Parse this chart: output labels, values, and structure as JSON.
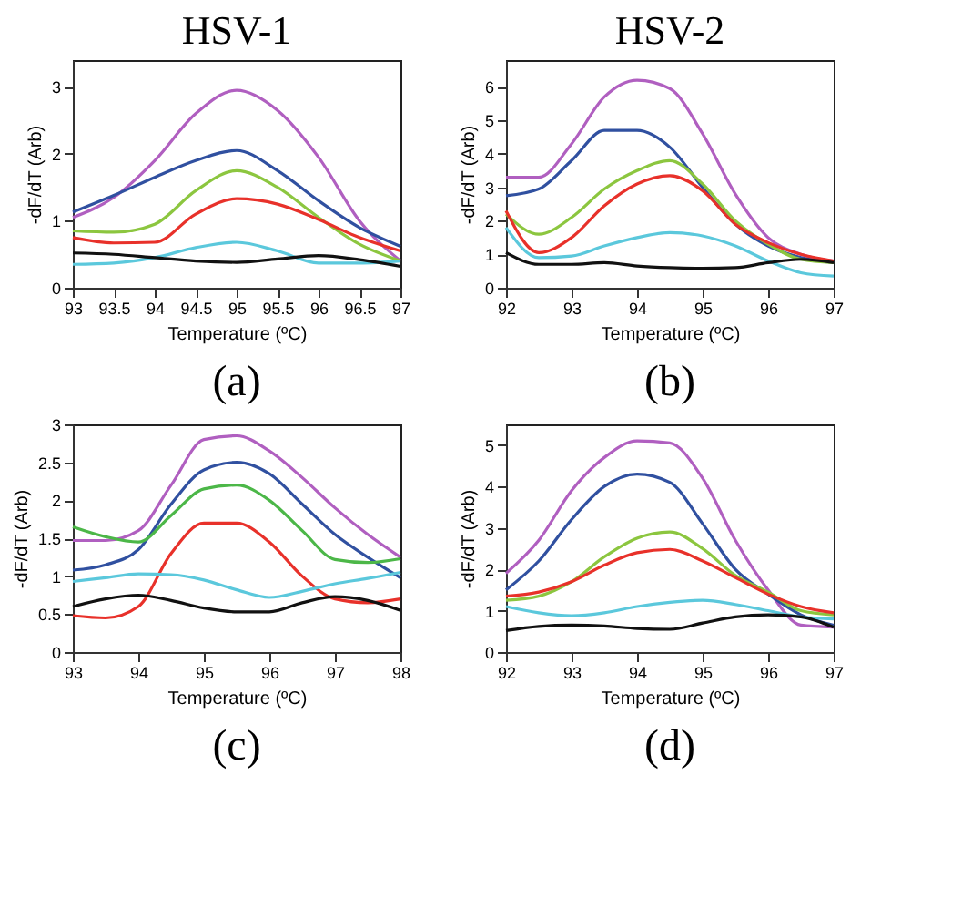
{
  "chart_data": [
    {
      "type": "line",
      "title": "HSV-1",
      "xlabel": "Temperature (ºC)",
      "ylabel": "-dF/dT (Arb)",
      "annotations": [
        "(a)"
      ],
      "grid": false,
      "xlim": [
        93,
        97
      ],
      "xticks": [
        93,
        93.5,
        94,
        94.5,
        95,
        95.5,
        96,
        96.5,
        97
      ],
      "ylim": [
        0,
        3.4
      ],
      "yticks": [
        0,
        1,
        2,
        3
      ],
      "x": [
        93,
        93.5,
        94,
        94.5,
        95,
        95.5,
        96,
        96.5,
        97
      ],
      "series": [
        {
          "color": "#b05fc0",
          "values": [
            1.05,
            1.35,
            1.9,
            2.6,
            2.95,
            2.65,
            1.95,
            1.0,
            0.4
          ]
        },
        {
          "color": "#3050a0",
          "values": [
            1.13,
            1.38,
            1.65,
            1.9,
            2.05,
            1.75,
            1.3,
            0.9,
            0.62
          ]
        },
        {
          "color": "#8cc63f",
          "values": [
            0.85,
            0.83,
            0.95,
            1.45,
            1.75,
            1.5,
            1.05,
            0.65,
            0.4
          ]
        },
        {
          "color": "#e8312a",
          "values": [
            0.75,
            0.67,
            0.68,
            1.1,
            1.33,
            1.25,
            1.02,
            0.75,
            0.55
          ]
        },
        {
          "color": "#5bc8dc",
          "values": [
            0.35,
            0.37,
            0.45,
            0.6,
            0.68,
            0.55,
            0.37,
            0.37,
            0.4
          ]
        },
        {
          "color": "#111111",
          "values": [
            0.52,
            0.5,
            0.45,
            0.4,
            0.38,
            0.43,
            0.48,
            0.42,
            0.32
          ]
        }
      ]
    },
    {
      "type": "line",
      "title": "HSV-2",
      "xlabel": "Temperature (ºC)",
      "ylabel": "-dF/dT (Arb)",
      "annotations": [
        "(b)"
      ],
      "grid": false,
      "xlim": [
        92,
        97
      ],
      "xticks": [
        92,
        93,
        94,
        95,
        96,
        97
      ],
      "ylim": [
        0,
        6.8
      ],
      "yticks": [
        0,
        1,
        2,
        3,
        4,
        5,
        6
      ],
      "x": [
        92,
        92.5,
        93,
        93.5,
        94,
        94.5,
        95,
        95.5,
        96,
        96.5,
        97
      ],
      "series": [
        {
          "color": "#b05fc0",
          "values": [
            3.3,
            3.3,
            4.3,
            5.7,
            6.2,
            5.95,
            4.6,
            2.8,
            1.5,
            1.0,
            0.8
          ]
        },
        {
          "color": "#3050a0",
          "values": [
            2.75,
            2.95,
            3.8,
            4.7,
            4.7,
            4.2,
            3.0,
            1.9,
            1.25,
            0.9,
            0.75
          ]
        },
        {
          "color": "#8cc63f",
          "values": [
            2.2,
            1.6,
            2.1,
            2.95,
            3.5,
            3.8,
            3.1,
            2.0,
            1.3,
            0.85,
            0.75
          ]
        },
        {
          "color": "#e8312a",
          "values": [
            2.3,
            1.05,
            1.5,
            2.45,
            3.1,
            3.35,
            2.9,
            1.9,
            1.35,
            1.0,
            0.8
          ]
        },
        {
          "color": "#5bc8dc",
          "values": [
            1.8,
            0.9,
            0.95,
            1.25,
            1.5,
            1.65,
            1.55,
            1.25,
            0.8,
            0.45,
            0.35
          ]
        },
        {
          "color": "#111111",
          "values": [
            1.05,
            0.7,
            0.7,
            0.75,
            0.65,
            0.6,
            0.58,
            0.6,
            0.75,
            0.85,
            0.75
          ]
        }
      ]
    },
    {
      "type": "line",
      "xlabel": "Temperature (ºC)",
      "ylabel": "-dF/dT (Arb)",
      "annotations": [
        "(c)"
      ],
      "grid": false,
      "xlim": [
        93,
        98
      ],
      "xticks": [
        93,
        94,
        95,
        96,
        97,
        98
      ],
      "ylim": [
        0,
        3
      ],
      "yticks": [
        0,
        0.5,
        1,
        1.5,
        2,
        2.5,
        3
      ],
      "x": [
        93,
        93.5,
        94,
        94.5,
        95,
        95.5,
        96,
        96.5,
        97,
        97.5,
        98
      ],
      "series": [
        {
          "color": "#b05fc0",
          "values": [
            1.47,
            1.47,
            1.6,
            2.2,
            2.8,
            2.85,
            2.65,
            2.3,
            1.9,
            1.55,
            1.25
          ]
        },
        {
          "color": "#3050a0",
          "values": [
            1.08,
            1.15,
            1.35,
            1.95,
            2.4,
            2.5,
            2.35,
            1.95,
            1.55,
            1.25,
            0.98
          ]
        },
        {
          "color": "#4cb748",
          "values": [
            1.65,
            1.52,
            1.45,
            1.8,
            2.15,
            2.2,
            2.0,
            1.6,
            1.22,
            1.18,
            1.23
          ]
        },
        {
          "color": "#e8312a",
          "values": [
            0.48,
            0.45,
            0.6,
            1.3,
            1.7,
            1.7,
            1.45,
            1.0,
            0.7,
            0.65,
            0.7
          ]
        },
        {
          "color": "#5bc8dc",
          "values": [
            0.93,
            0.98,
            1.03,
            1.02,
            0.95,
            0.82,
            0.72,
            0.8,
            0.9,
            0.97,
            1.05
          ]
        },
        {
          "color": "#111111",
          "values": [
            0.6,
            0.7,
            0.75,
            0.68,
            0.58,
            0.53,
            0.53,
            0.65,
            0.73,
            0.68,
            0.55
          ]
        }
      ]
    },
    {
      "type": "line",
      "xlabel": "Temperature (ºC)",
      "ylabel": "-dF/dT (Arb)",
      "annotations": [
        "(d)"
      ],
      "grid": false,
      "xlim": [
        92,
        97
      ],
      "xticks": [
        92,
        93,
        94,
        95,
        96,
        97
      ],
      "ylim": [
        0,
        5.5
      ],
      "yticks": [
        0,
        1,
        2,
        3,
        4,
        5
      ],
      "x": [
        92,
        92.5,
        93,
        93.5,
        94,
        94.5,
        95,
        95.5,
        96,
        96.5,
        97
      ],
      "series": [
        {
          "color": "#b05fc0",
          "values": [
            1.9,
            2.7,
            3.9,
            4.7,
            5.1,
            5.05,
            4.2,
            2.7,
            1.5,
            0.65,
            0.6
          ]
        },
        {
          "color": "#3050a0",
          "values": [
            1.5,
            2.2,
            3.2,
            4.0,
            4.3,
            4.1,
            3.1,
            2.0,
            1.4,
            0.9,
            0.65
          ]
        },
        {
          "color": "#8cc63f",
          "values": [
            1.25,
            1.35,
            1.7,
            2.3,
            2.75,
            2.9,
            2.5,
            1.85,
            1.45,
            1.0,
            0.9
          ]
        },
        {
          "color": "#e8312a",
          "values": [
            1.35,
            1.45,
            1.7,
            2.1,
            2.4,
            2.48,
            2.2,
            1.8,
            1.4,
            1.1,
            0.95
          ]
        },
        {
          "color": "#5bc8dc",
          "values": [
            1.1,
            0.95,
            0.88,
            0.95,
            1.1,
            1.2,
            1.25,
            1.15,
            1.0,
            0.85,
            0.8
          ]
        },
        {
          "color": "#111111",
          "values": [
            0.52,
            0.62,
            0.65,
            0.63,
            0.57,
            0.55,
            0.7,
            0.85,
            0.9,
            0.85,
            0.6
          ]
        }
      ]
    }
  ]
}
